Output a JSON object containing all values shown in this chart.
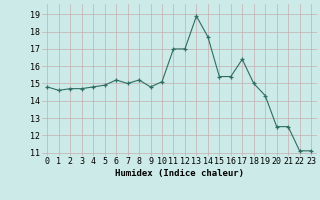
{
  "x": [
    0,
    1,
    2,
    3,
    4,
    5,
    6,
    7,
    8,
    9,
    10,
    11,
    12,
    13,
    14,
    15,
    16,
    17,
    18,
    19,
    20,
    21,
    22,
    23
  ],
  "y": [
    14.8,
    14.6,
    14.7,
    14.7,
    14.8,
    14.9,
    15.2,
    15.0,
    15.2,
    14.8,
    15.1,
    17.0,
    17.0,
    18.9,
    17.7,
    15.4,
    15.4,
    16.4,
    15.0,
    14.3,
    12.5,
    12.5,
    11.1,
    11.1
  ],
  "xlabel": "Humidex (Indice chaleur)",
  "xlim": [
    -0.5,
    23.5
  ],
  "ylim": [
    10.8,
    19.6
  ],
  "yticks": [
    11,
    12,
    13,
    14,
    15,
    16,
    17,
    18,
    19
  ],
  "line_color": "#2d6e62",
  "marker_color": "#2d6e62",
  "bg_color": "#cceae7",
  "grid_color_v": "#c4b0b0",
  "grid_color_h": "#c4b0b0",
  "axis_fontsize": 6.5,
  "tick_fontsize": 6.0
}
